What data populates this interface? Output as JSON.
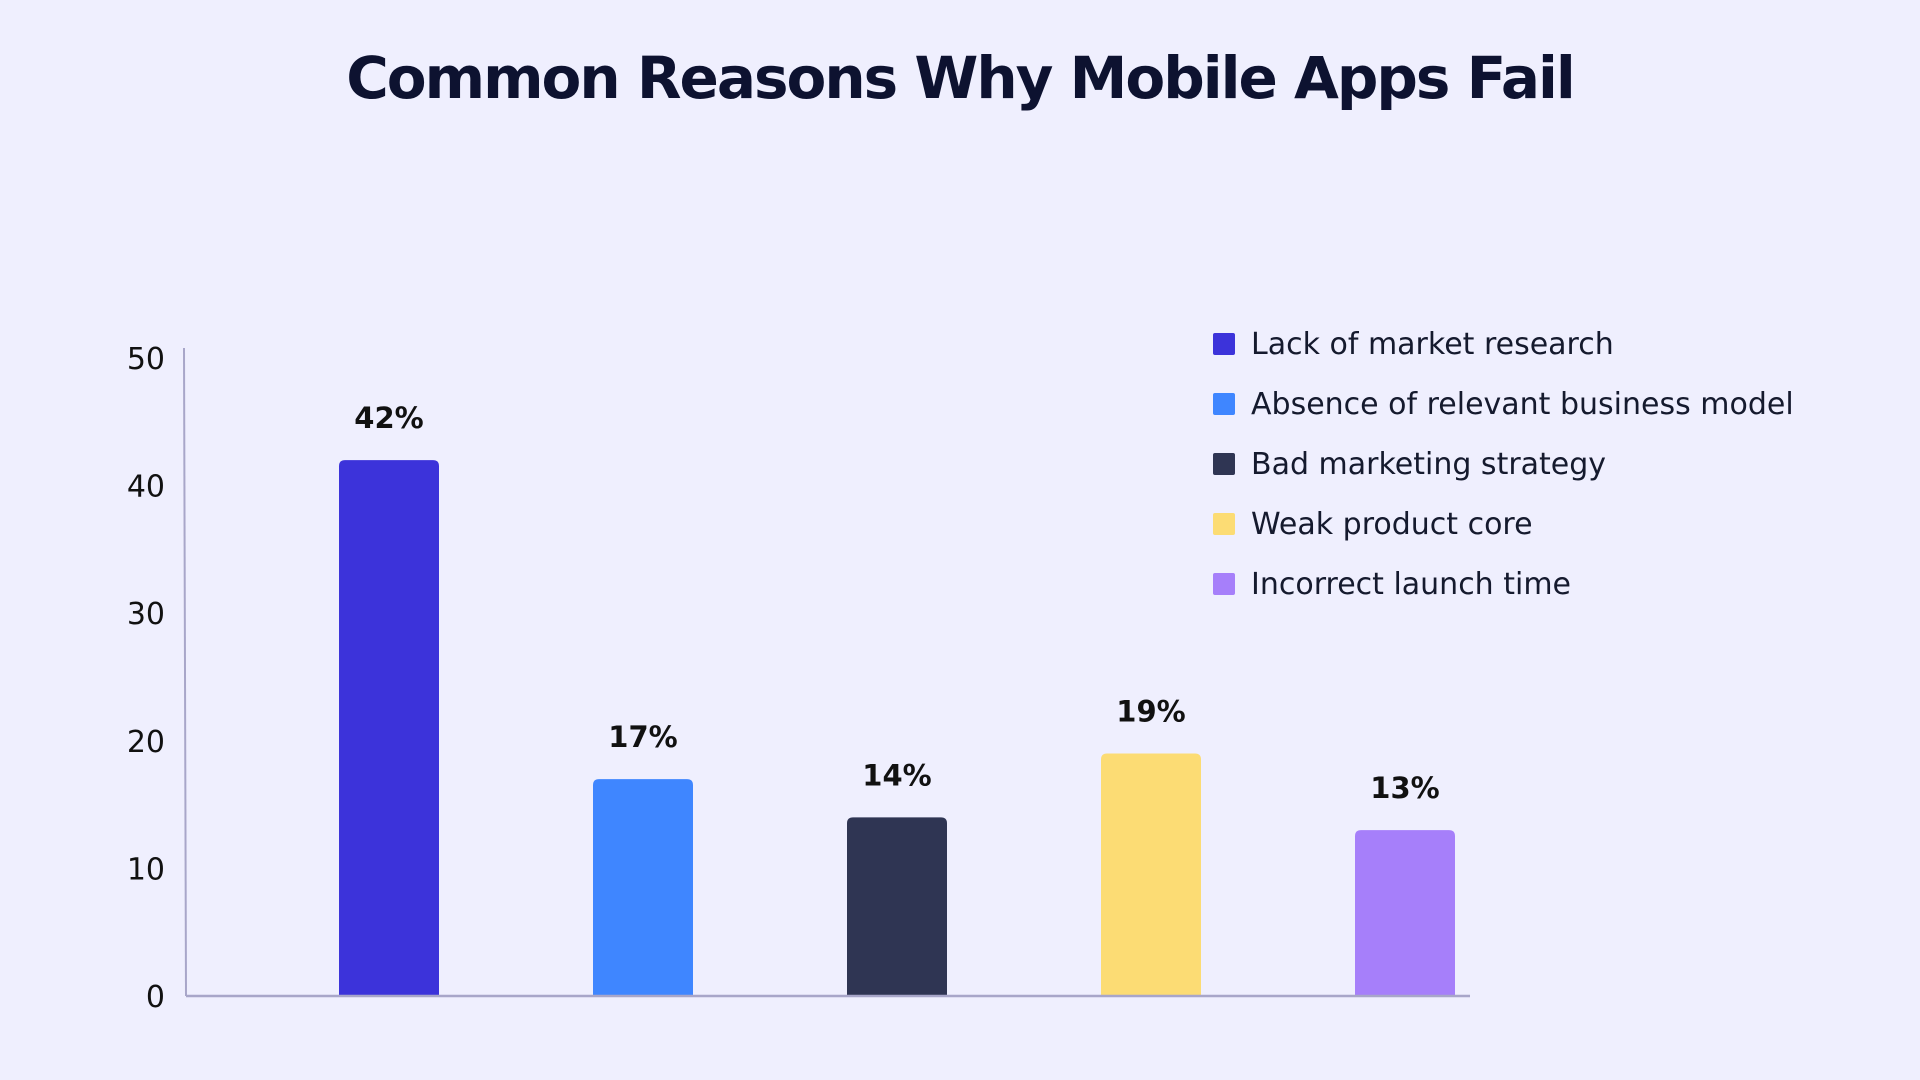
{
  "chart_data": {
    "type": "bar",
    "title": "Common Reasons Why Mobile Apps Fail",
    "categories": [
      "Lack of market research",
      "Absence of relevant business model",
      "Bad marketing strategy",
      "Weak product core",
      "Incorrect launch time"
    ],
    "values": [
      42,
      17,
      14,
      19,
      13
    ],
    "data_labels": [
      "42%",
      "17%",
      "14%",
      "19%",
      "13%"
    ],
    "colors": [
      "#3c33da",
      "#3f86ff",
      "#2f3553",
      "#fcdc74",
      "#a67ffa"
    ],
    "yticks": [
      "0",
      "10",
      "20",
      "30",
      "40",
      "50"
    ],
    "ylim": [
      0,
      50
    ],
    "xlabel": "",
    "ylabel": "",
    "grid": false,
    "legend_position": "top-right",
    "axis_color": "#a8a6c9"
  }
}
